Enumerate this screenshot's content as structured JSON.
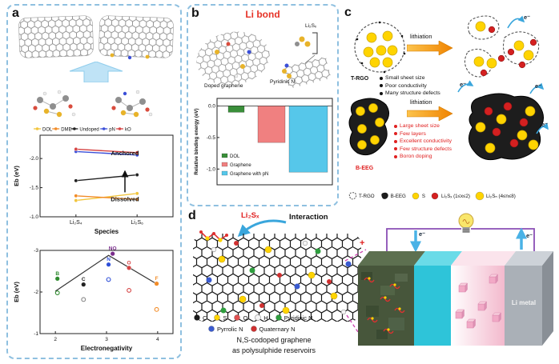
{
  "panels": {
    "a": {
      "label": "a"
    },
    "b": {
      "label": "b",
      "title": "Li bond",
      "title_color": "#e63327",
      "mol_labels": {
        "li2sx": "Li₂Sₓ",
        "pyridinic": "Pyridinic N",
        "doped_graphene": "Doped graphene"
      }
    },
    "c": {
      "label": "c",
      "lithiation": "lithiation",
      "electron": "e⁻",
      "t_rgo": {
        "name": "T-RGO",
        "color": "#111111",
        "bullets": [
          "Small sheet size",
          "Poor conductivity",
          "Many structure defects"
        ]
      },
      "b_eeg": {
        "name": "B-EEG",
        "color": "#e02020",
        "bullets": [
          "Large sheet size",
          "Few layers",
          "Excellent conductivity",
          "Few structure defects",
          "Boron doping"
        ]
      },
      "legend": [
        {
          "label": "T-RGO",
          "icon": "dashed-flake"
        },
        {
          "label": "B-EEG",
          "icon": "black-flake"
        },
        {
          "label": "S",
          "icon": "dot",
          "color": "#ffd400",
          "r": 4
        },
        {
          "label": "Li₂Sₓ (1≤x≤2)",
          "icon": "dot",
          "color": "#d42020",
          "r": 4
        },
        {
          "label": "Li₂Sₙ (4≤n≤8)",
          "icon": "dot",
          "color": "#ffd400",
          "r": 5
        }
      ]
    },
    "d": {
      "label": "d",
      "li2sx": "Li₂Sₓ",
      "interaction": "Interaction",
      "legend_row1": [
        {
          "label": "C",
          "color": "#1a1a1a"
        },
        {
          "label": "S",
          "color": "#ffd400"
        },
        {
          "label": "O",
          "color": "#e05050"
        },
        {
          "label": "H",
          "color": "#f5f5f5",
          "stroke": "#999999"
        },
        {
          "label": "Pyridinic N",
          "color": "#2e9e3e"
        }
      ],
      "legend_row2": [
        {
          "label": "Pyrrolic N",
          "color": "#3a5bd0"
        },
        {
          "label": "Quaternary N",
          "color": "#d03030"
        }
      ],
      "caption_line1": "N,S-codoped graphene",
      "caption_line2": "as polysulphide reservoirs",
      "electron": "e⁻",
      "li_metal": "Li metal",
      "plus": "+"
    }
  },
  "chart_data": [
    {
      "id": "anchoring-energies",
      "type": "line",
      "categories": [
        "Li₂S₄",
        "Li₂S₆"
      ],
      "series": [
        {
          "name": "DOL",
          "color": "#f2c53d",
          "values": [
            -1.28,
            -1.4
          ]
        },
        {
          "name": "DME",
          "color": "#f28c28",
          "values": [
            -1.36,
            -1.3
          ]
        },
        {
          "name": "Undoped",
          "color": "#222222",
          "values": [
            -1.62,
            -1.72
          ]
        },
        {
          "name": "pN",
          "color": "#3b4fd8",
          "values": [
            -2.12,
            -2.06
          ]
        },
        {
          "name": "kO",
          "color": "#d64545",
          "values": [
            -2.16,
            -2.1
          ]
        }
      ],
      "xlabel": "Species",
      "ylabel": "Eb (eV)",
      "ylim": [
        -2.4,
        -1.0
      ],
      "yticks": [
        -2.0,
        -1.5,
        -1.0
      ],
      "annotations": [
        "Anchored",
        "Dissolved"
      ],
      "legend_position": "top"
    },
    {
      "id": "electronegativity-scatter",
      "type": "scatter",
      "xlabel": "Electronegativity",
      "ylabel": "Eb (eV)",
      "xlim": [
        1.7,
        4.3
      ],
      "ylim": [
        -3,
        -1
      ],
      "xticks": [
        2,
        3,
        4
      ],
      "yticks": [
        -3,
        -2,
        -1
      ],
      "line": [
        [
          2.0,
          -2.02
        ],
        [
          3.04,
          -2.88
        ],
        [
          4.0,
          -2.18
        ]
      ],
      "points": [
        {
          "label": "B",
          "x": 2.04,
          "y": -2.32,
          "color": "#2e8b2e",
          "filled": true
        },
        {
          "label": "C",
          "x": 2.55,
          "y": -2.18,
          "color": "#222222",
          "filled": true
        },
        {
          "label": "N",
          "x": 3.04,
          "y": -2.66,
          "color": "#2e4fd8",
          "filled": true
        },
        {
          "label": "O",
          "x": 3.44,
          "y": -2.58,
          "color": "#d64545",
          "filled": true
        },
        {
          "label": "F",
          "x": 3.98,
          "y": -2.2,
          "color": "#f28c28",
          "filled": true
        },
        {
          "label": "NO",
          "x": 3.12,
          "y": -2.92,
          "color": "#7a2d8c",
          "filled": true
        },
        {
          "x": 2.04,
          "y": -1.98,
          "color": "#2e8b2e",
          "filled": false
        },
        {
          "x": 2.55,
          "y": -1.82,
          "color": "#888888",
          "filled": false
        },
        {
          "x": 3.04,
          "y": -2.3,
          "color": "#2e4fd8",
          "filled": false
        },
        {
          "x": 3.44,
          "y": -2.04,
          "color": "#d64545",
          "filled": false
        },
        {
          "x": 3.98,
          "y": -1.58,
          "color": "#f28c28",
          "filled": false
        }
      ]
    },
    {
      "id": "relative-binding-energy",
      "type": "bar",
      "categories": [
        "DOL",
        "Graphene",
        "Graphene with pN"
      ],
      "values": [
        -0.1,
        -0.58,
        -1.05
      ],
      "colors": [
        "#3a8f3a",
        "#f08080",
        "#56c7ea"
      ],
      "ylabel": "Relative binding energy (eV)",
      "ylim": [
        0.12,
        -1.25
      ],
      "yticks": [
        0.0,
        -0.5,
        -1.0
      ],
      "legend_position": "bottom-left"
    }
  ]
}
